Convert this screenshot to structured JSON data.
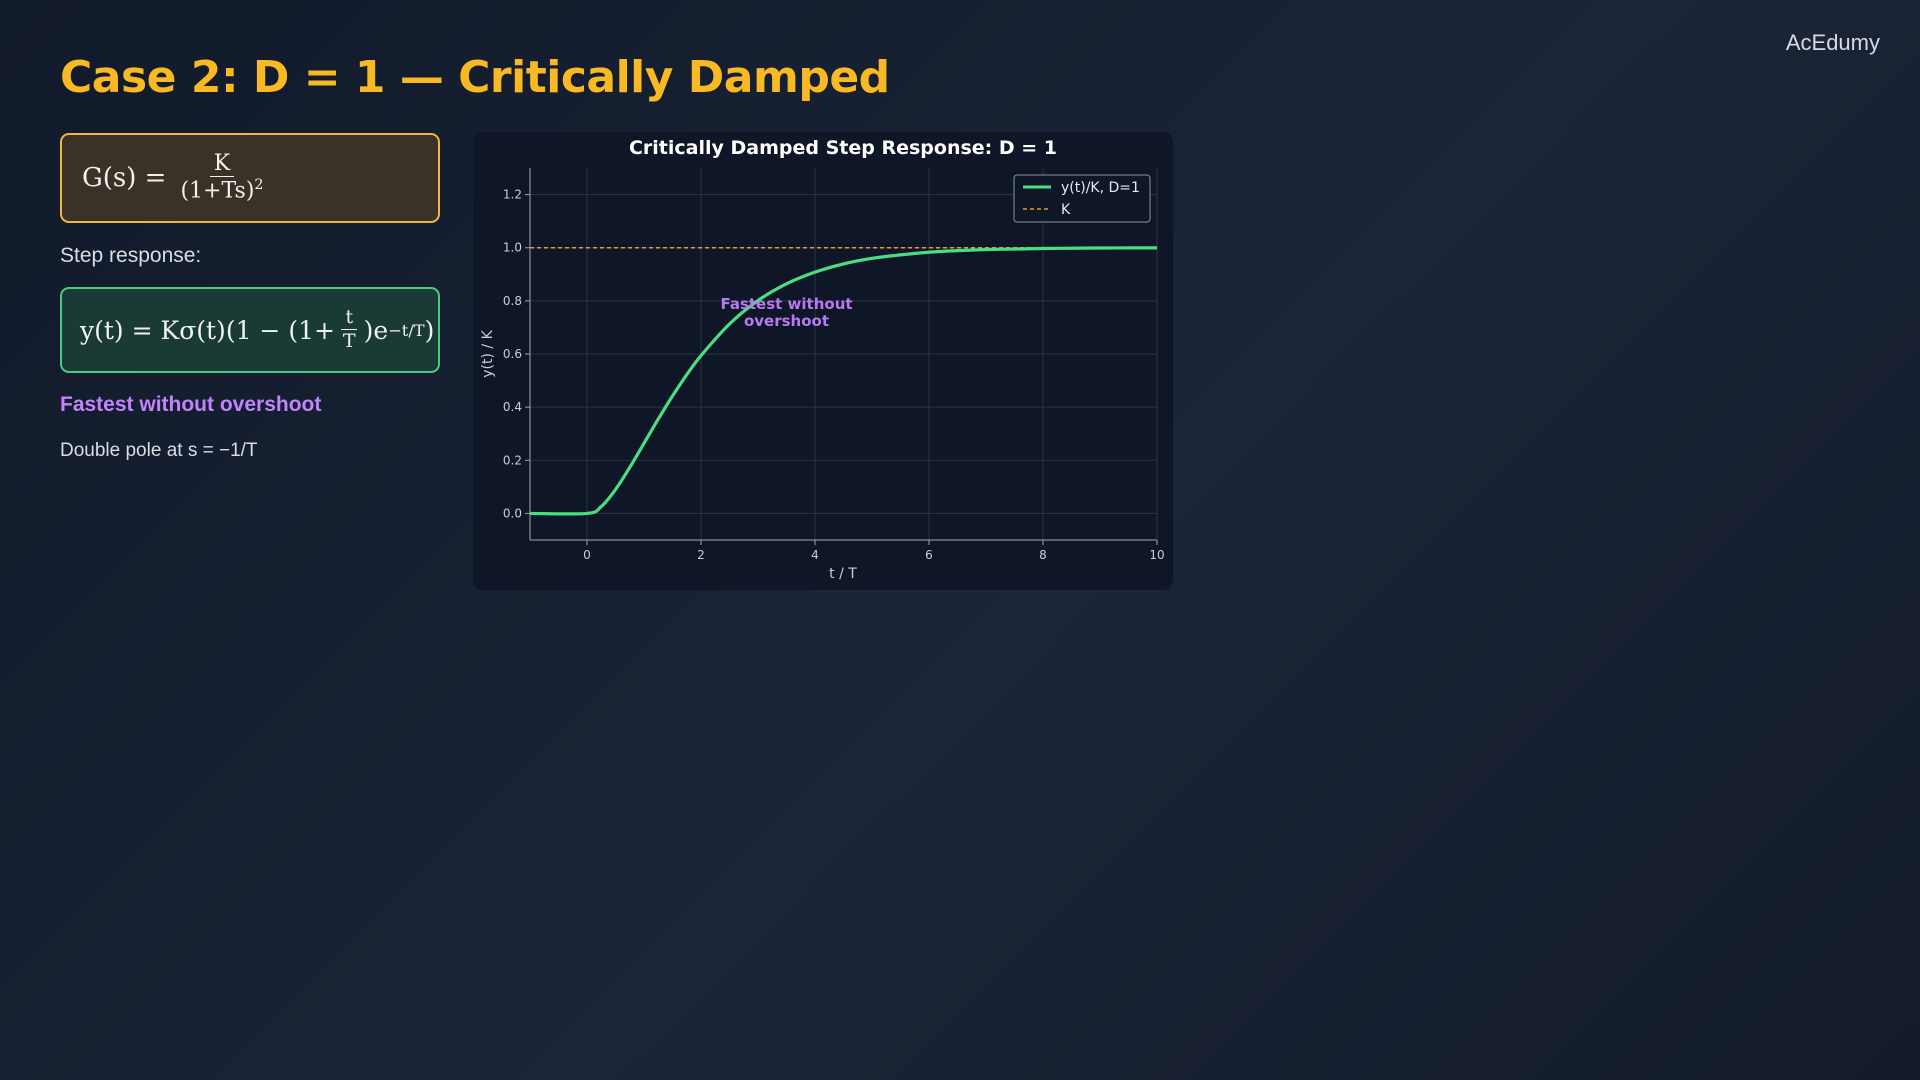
{
  "brand": "AcEdumy",
  "page_title": "Case 2: D = 1 — Critically Damped",
  "transfer_function": {
    "lhs": "G(s) =",
    "numerator": "K",
    "denominator": "(1+Ts)",
    "den_exponent": "2"
  },
  "step_label": "Step response:",
  "step_response": {
    "prefix": "y(t) = Kσ(t)(1 − (1+",
    "frac_num": "t",
    "frac_den": "T",
    "suffix": ")e",
    "exponent": "−t/T",
    "close": ")"
  },
  "highlight": "Fastest without overshoot",
  "note": "Double pole at s = −1/T",
  "colors": {
    "accent": "#f9b922",
    "curve": "#4ade80",
    "reference": "#e0a030",
    "annotation": "#b779f0"
  },
  "chart_data": {
    "type": "line",
    "title": "Critically Damped Step Response:  D = 1",
    "xlabel": "t / T",
    "ylabel": "y(t) / K",
    "xlim": [
      -1,
      10
    ],
    "ylim": [
      -0.1,
      1.3
    ],
    "xticks": [
      0,
      2,
      4,
      6,
      8,
      10
    ],
    "yticks": [
      0.0,
      0.2,
      0.4,
      0.6,
      0.8,
      1.0,
      1.2
    ],
    "grid": true,
    "legend_position": "top-right",
    "series": [
      {
        "name": "y(t)/K, D=1",
        "style": "solid",
        "x": [
          -1,
          0,
          0.25,
          0.5,
          0.75,
          1,
          1.25,
          1.5,
          1.75,
          2,
          2.5,
          3,
          3.5,
          4,
          4.5,
          5,
          5.5,
          6,
          6.5,
          7,
          7.5,
          8,
          8.5,
          9,
          9.5,
          10
        ],
        "y": [
          0,
          0,
          0.026,
          0.09,
          0.173,
          0.264,
          0.355,
          0.442,
          0.522,
          0.594,
          0.713,
          0.801,
          0.864,
          0.908,
          0.939,
          0.96,
          0.973,
          0.983,
          0.989,
          0.993,
          0.995,
          0.997,
          0.998,
          0.999,
          0.9993,
          0.9995
        ]
      },
      {
        "name": "K",
        "style": "dashed",
        "x": [
          -1,
          10
        ],
        "y": [
          1,
          1
        ]
      }
    ],
    "annotations": [
      {
        "lines": [
          "Fastest without",
          "overshoot"
        ],
        "x": 3.5,
        "y": 0.77
      }
    ]
  }
}
